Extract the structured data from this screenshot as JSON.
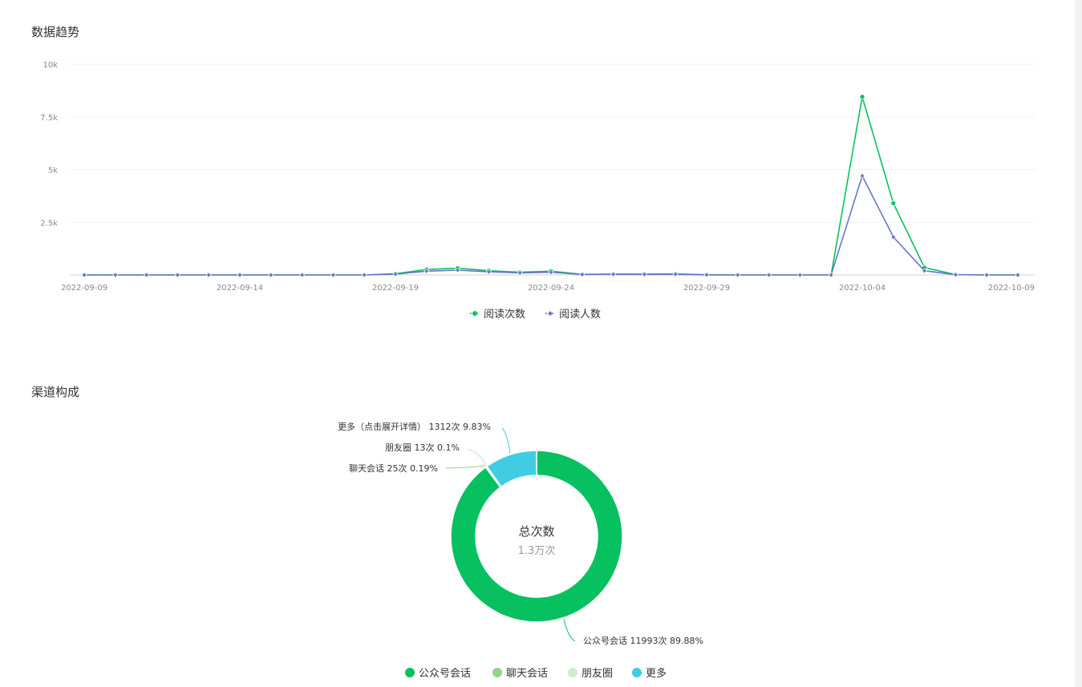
{
  "sections": {
    "trend_title": "数据趋势",
    "channel_title": "渠道构成"
  },
  "chart_data": [
    {
      "type": "line",
      "title": "数据趋势",
      "x": [
        "2022-09-09",
        "2022-09-10",
        "2022-09-11",
        "2022-09-12",
        "2022-09-13",
        "2022-09-14",
        "2022-09-15",
        "2022-09-16",
        "2022-09-17",
        "2022-09-18",
        "2022-09-19",
        "2022-09-20",
        "2022-09-21",
        "2022-09-22",
        "2022-09-23",
        "2022-09-24",
        "2022-09-25",
        "2022-09-26",
        "2022-09-27",
        "2022-09-28",
        "2022-09-29",
        "2022-09-30",
        "2022-10-01",
        "2022-10-02",
        "2022-10-03",
        "2022-10-04",
        "2022-10-05",
        "2022-10-06",
        "2022-10-07",
        "2022-10-08",
        "2022-10-09"
      ],
      "x_tick_labels": [
        "2022-09-09",
        "2022-09-14",
        "2022-09-19",
        "2022-09-24",
        "2022-09-29",
        "2022-10-04",
        "2022-10-09"
      ],
      "y_ticks": [
        {
          "value": 2500,
          "label": "2.5k"
        },
        {
          "value": 5000,
          "label": "5k"
        },
        {
          "value": 7500,
          "label": "7.5k"
        },
        {
          "value": 10000,
          "label": "10k"
        }
      ],
      "ylim": [
        0,
        10000
      ],
      "grid": true,
      "legend_position": "bottom-center",
      "series": [
        {
          "name": "阅读次数",
          "color": "#07c160",
          "marker": "circle",
          "values": [
            0,
            0,
            0,
            0,
            0,
            0,
            0,
            0,
            0,
            0,
            60,
            260,
            320,
            200,
            130,
            180,
            30,
            40,
            40,
            50,
            10,
            0,
            0,
            0,
            0,
            8450,
            3400,
            350,
            20,
            0,
            0
          ]
        },
        {
          "name": "阅读人数",
          "color": "#6a75c9",
          "marker": "diamond",
          "values": [
            0,
            0,
            0,
            0,
            0,
            0,
            0,
            0,
            0,
            0,
            40,
            180,
            230,
            150,
            100,
            130,
            20,
            30,
            25,
            30,
            5,
            0,
            0,
            0,
            0,
            4700,
            1800,
            200,
            10,
            0,
            0
          ]
        }
      ]
    },
    {
      "type": "pie",
      "title": "渠道构成",
      "center_title": "总次数",
      "center_value": "1.3万次",
      "donut": true,
      "legend_position": "bottom-center",
      "slices": [
        {
          "name": "公众号会话",
          "value": 11993,
          "percent": 89.88,
          "label": "公众号会话 11993次 89.88%",
          "color": "#07c160"
        },
        {
          "name": "聊天会话",
          "value": 25,
          "percent": 0.19,
          "label": "聊天会话 25次 0.19%",
          "color": "#91d489"
        },
        {
          "name": "朋友圈",
          "value": 13,
          "percent": 0.1,
          "label": "朋友圈 13次 0.1%",
          "color": "#d3ecd0"
        },
        {
          "name": "更多",
          "value": 1312,
          "percent": 9.83,
          "label": "更多（点击展开详情） 1312次 9.83%",
          "color": "#40cde2"
        }
      ]
    }
  ]
}
